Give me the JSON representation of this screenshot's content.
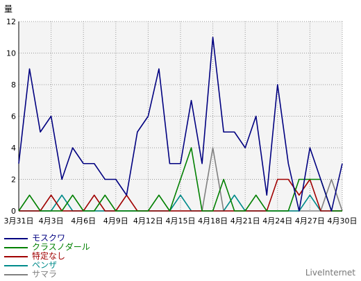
{
  "chart_data": {
    "type": "line",
    "ylabel": "量",
    "ylim": [
      0,
      12
    ],
    "yticks": [
      0,
      2,
      4,
      6,
      8,
      10,
      12
    ],
    "grid": true,
    "legend_position": "bottom-left",
    "categories": [
      "3月31日",
      "4月1日",
      "4月2日",
      "4月3日",
      "4月4日",
      "4月5日",
      "4月6日",
      "4月7日",
      "4月8日",
      "4月9日",
      "4月10日",
      "4月11日",
      "4月12日",
      "4月13日",
      "4月14日",
      "4月15日",
      "4月16日",
      "4月17日",
      "4月18日",
      "4月19日",
      "4月20日",
      "4月21日",
      "4月22日",
      "4月23日",
      "4月24日",
      "4月25日",
      "4月26日",
      "4月27日",
      "4月28日",
      "4月29日",
      "4月30日"
    ],
    "xtick_labels": [
      "3月31日",
      "4月3日",
      "4月6日",
      "4月9日",
      "4月12日",
      "4月15日",
      "4月18日",
      "4月21日",
      "4月24日",
      "4月27日",
      "4月30日"
    ],
    "series": [
      {
        "name": "モスクワ",
        "color": "#000080",
        "values": [
          3,
          9,
          5,
          6,
          2,
          4,
          3,
          3,
          2,
          2,
          1,
          5,
          6,
          9,
          3,
          3,
          7,
          3,
          11,
          5,
          5,
          4,
          6,
          1,
          8,
          3,
          0,
          4,
          2,
          0,
          3
        ]
      },
      {
        "name": "クラスノダール",
        "color": "#008000",
        "values": [
          0,
          1,
          0,
          0,
          0,
          1,
          0,
          0,
          1,
          0,
          0,
          0,
          0,
          1,
          0,
          2,
          4,
          0,
          0,
          2,
          0,
          0,
          1,
          0,
          0,
          0,
          2,
          2,
          2,
          0,
          0
        ]
      },
      {
        "name": "特定なし",
        "color": "#a00000",
        "values": [
          0,
          0,
          0,
          1,
          0,
          0,
          0,
          1,
          0,
          0,
          1,
          0,
          0,
          0,
          0,
          0,
          0,
          0,
          0,
          0,
          0,
          0,
          0,
          0,
          2,
          2,
          1,
          2,
          0,
          0,
          0
        ]
      },
      {
        "name": "ペンザ",
        "color": "#008b8b",
        "values": [
          0,
          0,
          0,
          0,
          1,
          0,
          0,
          0,
          0,
          0,
          0,
          0,
          0,
          0,
          0,
          1,
          0,
          0,
          0,
          0,
          1,
          0,
          0,
          0,
          0,
          0,
          0,
          1,
          0,
          0,
          0
        ]
      },
      {
        "name": "サマラ",
        "color": "#808080",
        "values": [
          0,
          0,
          0,
          0,
          0,
          0,
          0,
          0,
          0,
          0,
          0,
          0,
          0,
          0,
          0,
          0,
          0,
          0,
          4,
          0,
          0,
          0,
          0,
          0,
          0,
          0,
          0,
          0,
          0,
          2,
          0
        ]
      }
    ]
  },
  "footer": {
    "brand": "LiveInternet"
  }
}
